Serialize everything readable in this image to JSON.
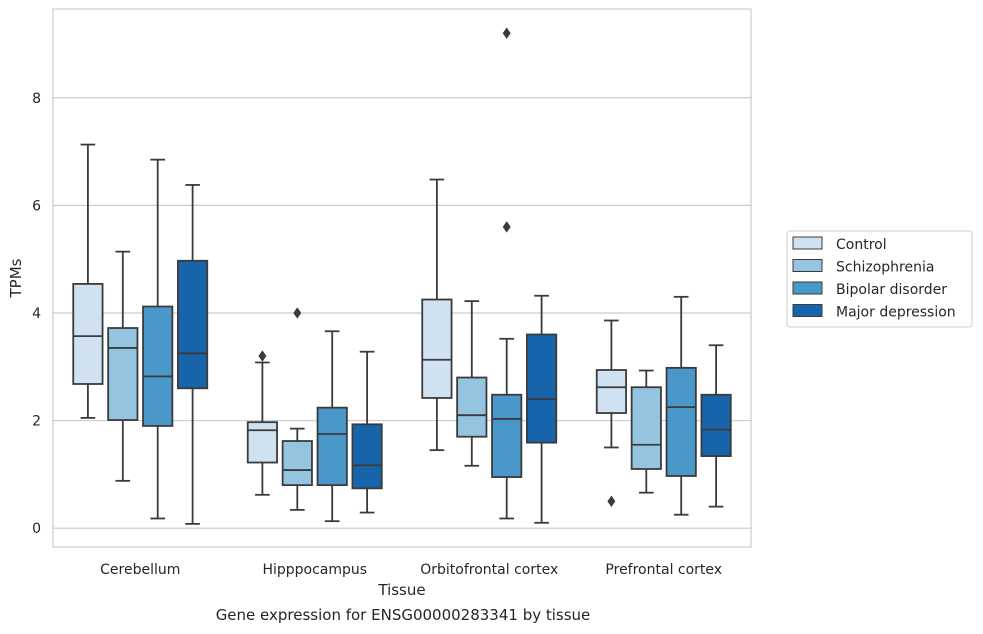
{
  "caption": "Gene expression for ENSG00000283341 by tissue",
  "colors": {
    "series": [
      "#d0e1f2",
      "#94c4df",
      "#4a98c9",
      "#1764ab"
    ],
    "grid": "#cccccc",
    "line": "#3b3b3b",
    "frame": "#cccccc"
  },
  "chart_data": {
    "type": "box",
    "xlabel": "Tissue",
    "ylabel": "TPMs",
    "ylim": [
      -0.35,
      9.65
    ],
    "yticks": [
      0,
      2,
      4,
      6,
      8
    ],
    "grid": "horizontal",
    "legend_position": "right, outside plot",
    "categories": [
      "Cerebellum",
      "Hipppocampus",
      "Orbitofrontal cortex",
      "Prefrontal cortex"
    ],
    "series": [
      {
        "name": "Control",
        "boxes": [
          {
            "whislo": 2.05,
            "q1": 2.68,
            "med": 3.57,
            "q3": 4.54,
            "whishi": 7.13,
            "fliers": []
          },
          {
            "whislo": 0.62,
            "q1": 1.22,
            "med": 1.82,
            "q3": 1.97,
            "whishi": 3.08,
            "fliers": [
              3.2
            ]
          },
          {
            "whislo": 1.45,
            "q1": 2.42,
            "med": 3.13,
            "q3": 4.25,
            "whishi": 6.48,
            "fliers": []
          },
          {
            "whislo": 1.5,
            "q1": 2.14,
            "med": 2.62,
            "q3": 2.94,
            "whishi": 3.86,
            "fliers": [
              0.5
            ]
          }
        ]
      },
      {
        "name": "Schizophrenia",
        "boxes": [
          {
            "whislo": 0.88,
            "q1": 2.01,
            "med": 3.35,
            "q3": 3.72,
            "whishi": 5.14,
            "fliers": []
          },
          {
            "whislo": 0.34,
            "q1": 0.8,
            "med": 1.08,
            "q3": 1.62,
            "whishi": 1.85,
            "fliers": [
              4.0
            ]
          },
          {
            "whislo": 1.16,
            "q1": 1.7,
            "med": 2.1,
            "q3": 2.8,
            "whishi": 4.22,
            "fliers": []
          },
          {
            "whislo": 0.66,
            "q1": 1.1,
            "med": 1.55,
            "q3": 2.62,
            "whishi": 2.93,
            "fliers": []
          }
        ]
      },
      {
        "name": "Bipolar disorder",
        "boxes": [
          {
            "whislo": 0.18,
            "q1": 1.9,
            "med": 2.82,
            "q3": 4.12,
            "whishi": 6.85,
            "fliers": []
          },
          {
            "whislo": 0.13,
            "q1": 0.8,
            "med": 1.75,
            "q3": 2.24,
            "whishi": 3.66,
            "fliers": []
          },
          {
            "whislo": 0.18,
            "q1": 0.95,
            "med": 2.03,
            "q3": 2.48,
            "whishi": 3.52,
            "fliers": [
              5.6,
              9.2
            ]
          },
          {
            "whislo": 0.25,
            "q1": 0.97,
            "med": 2.25,
            "q3": 2.98,
            "whishi": 4.3,
            "fliers": []
          }
        ]
      },
      {
        "name": "Major depression",
        "boxes": [
          {
            "whislo": 0.08,
            "q1": 2.6,
            "med": 3.25,
            "q3": 4.97,
            "whishi": 6.38,
            "fliers": []
          },
          {
            "whislo": 0.29,
            "q1": 0.74,
            "med": 1.17,
            "q3": 1.93,
            "whishi": 3.28,
            "fliers": []
          },
          {
            "whislo": 0.1,
            "q1": 1.59,
            "med": 2.4,
            "q3": 3.6,
            "whishi": 4.32,
            "fliers": []
          },
          {
            "whislo": 0.4,
            "q1": 1.34,
            "med": 1.83,
            "q3": 2.48,
            "whishi": 3.4,
            "fliers": []
          }
        ]
      }
    ]
  }
}
